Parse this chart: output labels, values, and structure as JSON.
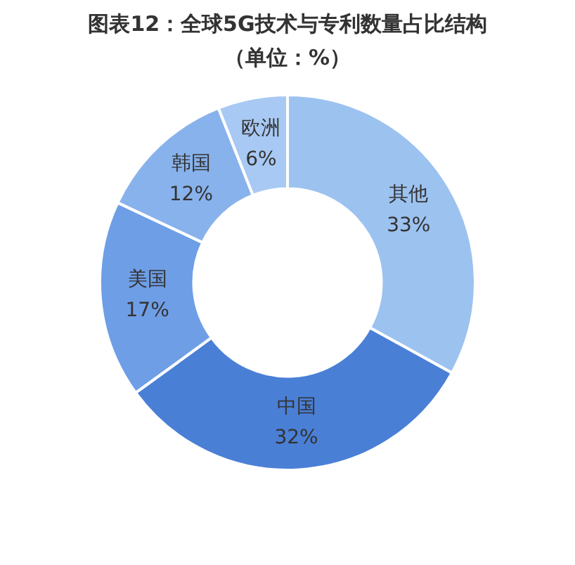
{
  "chart_data": {
    "type": "donut",
    "title": "图表12：全球5G技术与专利数量占比结构",
    "subtitle": "（单位：%）",
    "categories": [
      "其他",
      "中国",
      "美国",
      "韩国",
      "欧洲"
    ],
    "values": [
      33,
      32,
      17,
      12,
      6
    ],
    "colors": [
      "#9cc2f0",
      "#4a7fd6",
      "#6e9ee6",
      "#88b2ec",
      "#a8c9f3"
    ],
    "value_labels": [
      "33%",
      "32%",
      "17%",
      "12%",
      "6%"
    ],
    "legend": false
  }
}
